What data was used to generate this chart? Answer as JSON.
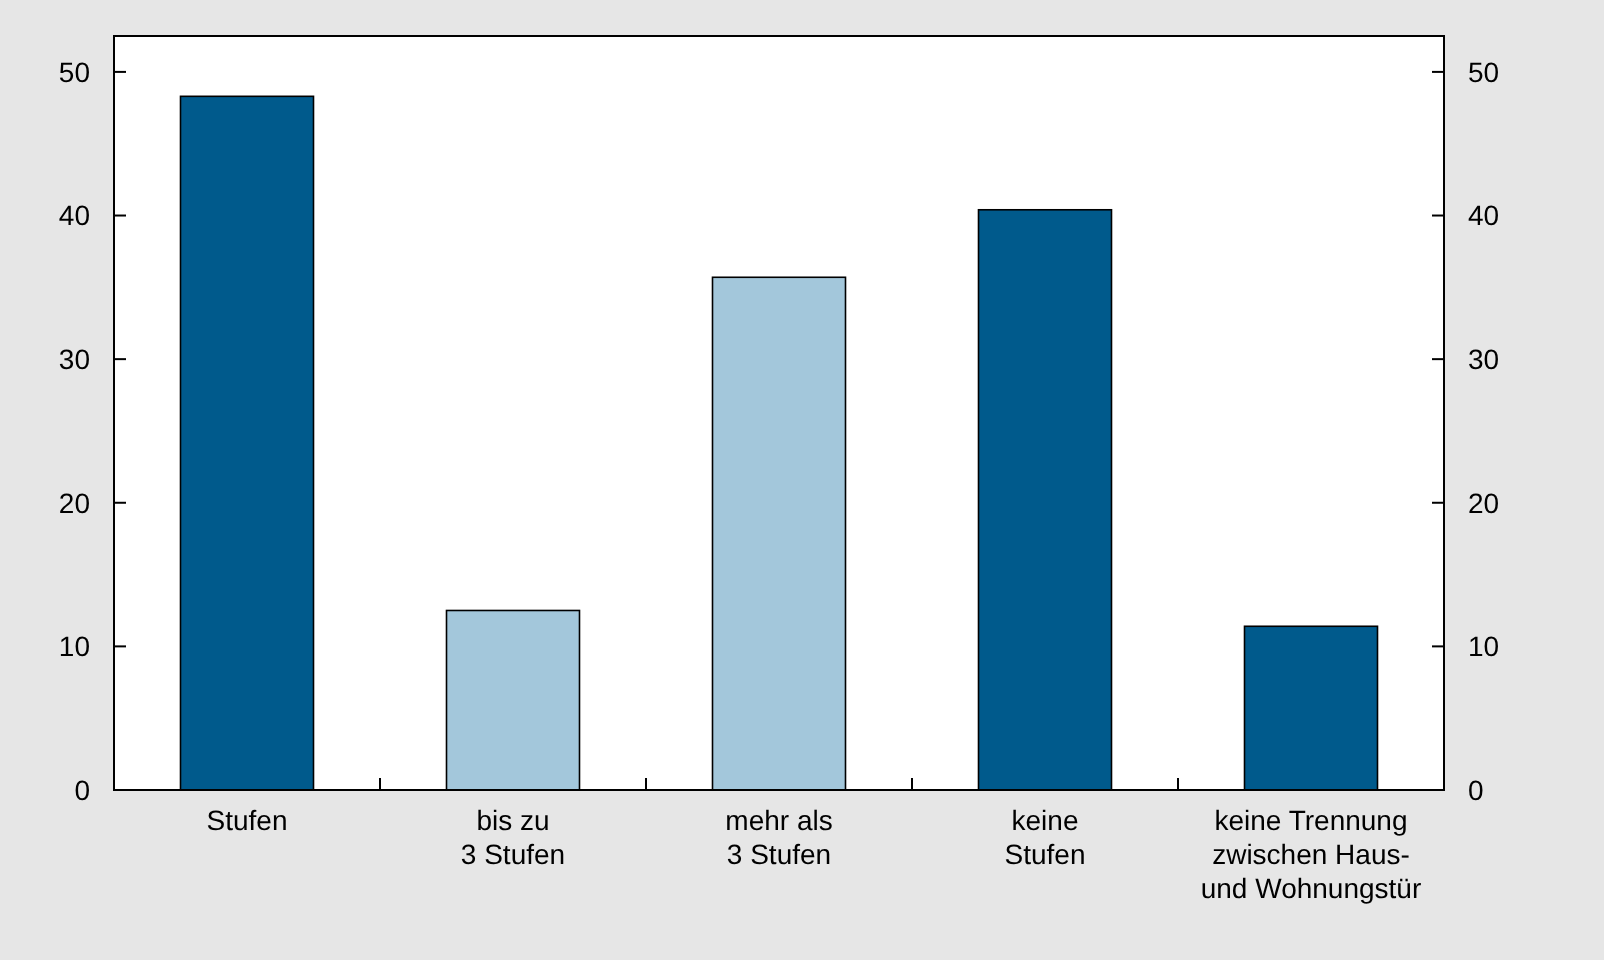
{
  "chart_data": {
    "type": "bar",
    "categories": [
      "Stufen",
      "bis zu\n3 Stufen",
      "mehr als\n3 Stufen",
      "keine\nStufen",
      "keine Trennung\nzwischen Haus-\nund Wohnungstür"
    ],
    "values": [
      48.3,
      12.5,
      35.7,
      40.4,
      11.4
    ],
    "colors": [
      "#005a8c",
      "#a3c7db",
      "#a3c7db",
      "#005a8c",
      "#005a8c"
    ],
    "ylim": [
      0,
      52.5
    ],
    "yticks": [
      0,
      10,
      20,
      30,
      40,
      50
    ],
    "y2lim": [
      0,
      52.5
    ],
    "y2ticks": [
      0,
      10,
      20,
      30,
      40,
      50
    ]
  }
}
